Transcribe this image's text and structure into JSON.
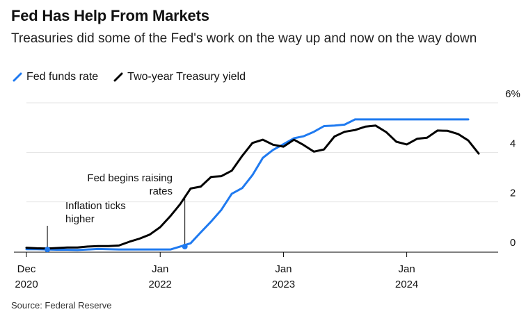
{
  "title": "Fed Has Help From Markets",
  "subtitle": "Treasuries did some of the Fed's work on the way up and now on the way down",
  "source": "Source: Federal Reserve",
  "colors": {
    "fed_funds": "#1f7af0",
    "treasury": "#000000",
    "grid": "#e3e3e3"
  },
  "chart_data": {
    "type": "line",
    "title": "Fed Has Help From Markets",
    "subtitle": "Treasuries did some of the Fed's work on the way up and now on the way down",
    "xlabel": "",
    "ylabel": "",
    "ylim": [
      0,
      6
    ],
    "xlim": [
      "2020-12-01",
      "2024-08-01"
    ],
    "grid": true,
    "legend_position": "top-left",
    "y_axis_side": "right",
    "y_ticks": [
      {
        "value": 0,
        "label": "0"
      },
      {
        "value": 2,
        "label": "2"
      },
      {
        "value": 4,
        "label": "4"
      },
      {
        "value": 6,
        "label": "6%"
      }
    ],
    "x_ticks": [
      {
        "date": "2020-12-01",
        "line1": "Dec",
        "line2": "2020"
      },
      {
        "date": "2022-01-01",
        "line1": "Jan",
        "line2": "2022"
      },
      {
        "date": "2023-01-01",
        "line1": "Jan",
        "line2": "2023"
      },
      {
        "date": "2024-01-01",
        "line1": "Jan",
        "line2": "2024"
      }
    ],
    "series": [
      {
        "name": "Fed funds rate",
        "color": "#1f7af0",
        "points": [
          [
            "2020-12-01",
            0.09
          ],
          [
            "2021-01-01",
            0.09
          ],
          [
            "2021-02-01",
            0.08
          ],
          [
            "2021-03-01",
            0.07
          ],
          [
            "2021-04-01",
            0.07
          ],
          [
            "2021-05-01",
            0.06
          ],
          [
            "2021-06-01",
            0.08
          ],
          [
            "2021-07-01",
            0.1
          ],
          [
            "2021-08-01",
            0.09
          ],
          [
            "2021-09-01",
            0.08
          ],
          [
            "2021-10-01",
            0.08
          ],
          [
            "2021-11-01",
            0.08
          ],
          [
            "2021-12-01",
            0.08
          ],
          [
            "2022-01-01",
            0.08
          ],
          [
            "2022-02-01",
            0.08
          ],
          [
            "2022-03-01",
            0.2
          ],
          [
            "2022-04-01",
            0.33
          ],
          [
            "2022-05-01",
            0.77
          ],
          [
            "2022-06-01",
            1.21
          ],
          [
            "2022-07-01",
            1.68
          ],
          [
            "2022-08-01",
            2.33
          ],
          [
            "2022-09-01",
            2.56
          ],
          [
            "2022-10-01",
            3.08
          ],
          [
            "2022-11-01",
            3.78
          ],
          [
            "2022-12-01",
            4.1
          ],
          [
            "2023-01-01",
            4.33
          ],
          [
            "2023-02-01",
            4.57
          ],
          [
            "2023-03-01",
            4.65
          ],
          [
            "2023-04-01",
            4.83
          ],
          [
            "2023-05-01",
            5.06
          ],
          [
            "2023-06-01",
            5.08
          ],
          [
            "2023-07-01",
            5.12
          ],
          [
            "2023-08-01",
            5.33
          ],
          [
            "2023-09-01",
            5.33
          ],
          [
            "2023-10-01",
            5.33
          ],
          [
            "2023-11-01",
            5.33
          ],
          [
            "2023-12-01",
            5.33
          ],
          [
            "2024-01-01",
            5.33
          ],
          [
            "2024-02-01",
            5.33
          ],
          [
            "2024-03-01",
            5.33
          ],
          [
            "2024-04-01",
            5.33
          ],
          [
            "2024-05-01",
            5.33
          ],
          [
            "2024-06-01",
            5.33
          ],
          [
            "2024-07-01",
            5.33
          ]
        ]
      },
      {
        "name": "Two-year Treasury yield",
        "color": "#000000",
        "points": [
          [
            "2020-12-01",
            0.15
          ],
          [
            "2021-01-01",
            0.13
          ],
          [
            "2021-02-01",
            0.12
          ],
          [
            "2021-03-01",
            0.14
          ],
          [
            "2021-04-01",
            0.16
          ],
          [
            "2021-05-01",
            0.16
          ],
          [
            "2021-06-01",
            0.2
          ],
          [
            "2021-07-01",
            0.22
          ],
          [
            "2021-08-01",
            0.22
          ],
          [
            "2021-09-01",
            0.24
          ],
          [
            "2021-10-01",
            0.39
          ],
          [
            "2021-11-01",
            0.52
          ],
          [
            "2021-12-01",
            0.68
          ],
          [
            "2022-01-01",
            0.98
          ],
          [
            "2022-02-01",
            1.44
          ],
          [
            "2022-03-01",
            1.91
          ],
          [
            "2022-04-01",
            2.54
          ],
          [
            "2022-05-01",
            2.62
          ],
          [
            "2022-06-01",
            3.01
          ],
          [
            "2022-07-01",
            3.04
          ],
          [
            "2022-08-01",
            3.26
          ],
          [
            "2022-09-01",
            3.86
          ],
          [
            "2022-10-01",
            4.38
          ],
          [
            "2022-11-01",
            4.51
          ],
          [
            "2022-12-01",
            4.31
          ],
          [
            "2023-01-01",
            4.23
          ],
          [
            "2023-02-01",
            4.51
          ],
          [
            "2023-03-01",
            4.3
          ],
          [
            "2023-04-01",
            4.03
          ],
          [
            "2023-05-01",
            4.12
          ],
          [
            "2023-06-01",
            4.64
          ],
          [
            "2023-07-01",
            4.83
          ],
          [
            "2023-08-01",
            4.9
          ],
          [
            "2023-09-01",
            5.04
          ],
          [
            "2023-10-01",
            5.08
          ],
          [
            "2023-11-01",
            4.82
          ],
          [
            "2023-12-01",
            4.43
          ],
          [
            "2024-01-01",
            4.32
          ],
          [
            "2024-02-01",
            4.55
          ],
          [
            "2024-03-01",
            4.59
          ],
          [
            "2024-04-01",
            4.88
          ],
          [
            "2024-05-01",
            4.87
          ],
          [
            "2024-06-01",
            4.74
          ],
          [
            "2024-07-01",
            4.48
          ],
          [
            "2024-08-01",
            3.95
          ]
        ]
      }
    ],
    "annotations": [
      {
        "label": "Inflation ticks",
        "label2": "higher",
        "date": "2021-02-01",
        "marker_series": "Fed funds rate",
        "marker_value": 0.08
      },
      {
        "label": "Fed begins raising",
        "label2": "rates",
        "date": "2022-03-15",
        "marker_series": "Fed funds rate",
        "marker_value": 0.2
      }
    ]
  }
}
